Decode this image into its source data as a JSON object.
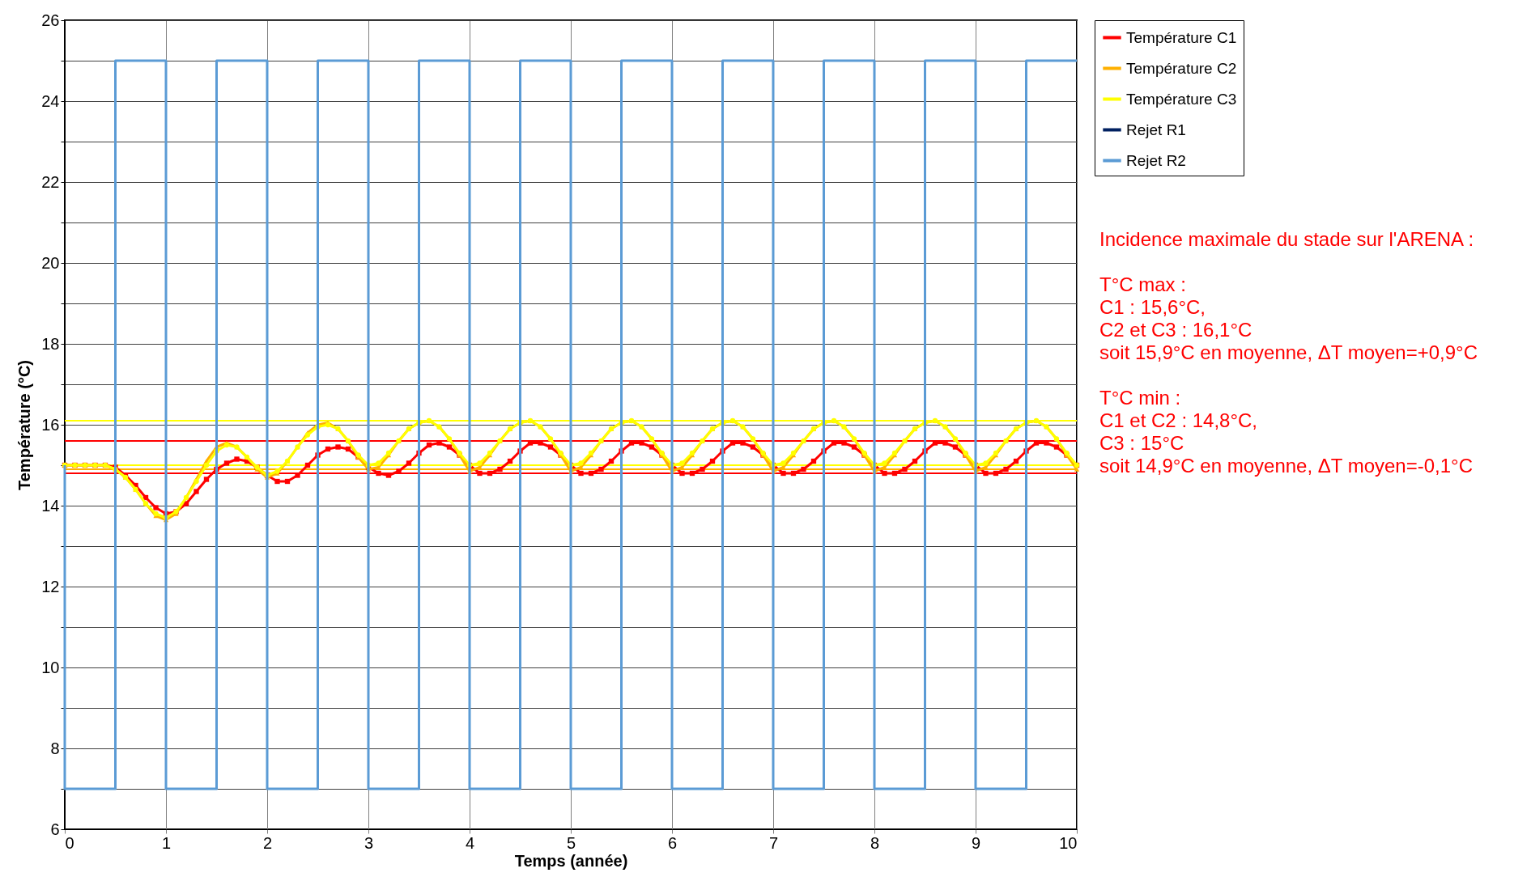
{
  "chart_data": {
    "type": "line",
    "xlabel": "Temps (année)",
    "ylabel": "Température (°C)",
    "xlim": [
      0,
      10
    ],
    "ylim": [
      6,
      26
    ],
    "xticks": [
      0,
      1,
      2,
      3,
      4,
      5,
      6,
      7,
      8,
      9,
      10
    ],
    "yticks": [
      6,
      {
        "value": 7,
        "label": null
      },
      8,
      {
        "value": 9,
        "label": null
      },
      10,
      {
        "value": 11,
        "label": null
      },
      12,
      {
        "value": 13,
        "label": null
      },
      14,
      {
        "value": 15,
        "label": null
      },
      16,
      {
        "value": 17,
        "label": null
      },
      18,
      {
        "value": 19,
        "label": null
      },
      20,
      {
        "value": 21,
        "label": null
      },
      22,
      {
        "value": 23,
        "label": null
      },
      24,
      {
        "value": 25,
        "label": null
      },
      26
    ],
    "grid": true,
    "legend": "right",
    "x": [
      0,
      0.1,
      0.2,
      0.3,
      0.4,
      0.5,
      0.6,
      0.7,
      0.8,
      0.9,
      1,
      1.1,
      1.2,
      1.3,
      1.4,
      1.5,
      1.6,
      1.7,
      1.8,
      1.9,
      2,
      2.1,
      2.2,
      2.3,
      2.4,
      2.5,
      2.6,
      2.7,
      2.8,
      2.9,
      3,
      3.1,
      3.2,
      3.3,
      3.4,
      3.5,
      3.6,
      3.7,
      3.8,
      3.9,
      4,
      4.1,
      4.2,
      4.3,
      4.4,
      4.5,
      4.6,
      4.7,
      4.8,
      4.9,
      5,
      5.1,
      5.2,
      5.3,
      5.4,
      5.5,
      5.6,
      5.7,
      5.8,
      5.9,
      6,
      6.1,
      6.2,
      6.3,
      6.4,
      6.5,
      6.6,
      6.7,
      6.8,
      6.9,
      7,
      7.1,
      7.2,
      7.3,
      7.4,
      7.5,
      7.6,
      7.7,
      7.8,
      7.9,
      8,
      8.1,
      8.2,
      8.3,
      8.4,
      8.5,
      8.6,
      8.7,
      8.8,
      8.9,
      9,
      9.1,
      9.2,
      9.3,
      9.4,
      9.5,
      9.6,
      9.7,
      9.8,
      9.9,
      10
    ],
    "series": [
      {
        "name": "Température C1",
        "color": "#ff0000",
        "marker": "square",
        "values": [
          15,
          15,
          15,
          15,
          15,
          14.95,
          14.75,
          14.5,
          14.2,
          13.95,
          13.8,
          13.85,
          14.05,
          14.35,
          14.65,
          14.9,
          15.05,
          15.15,
          15.1,
          14.95,
          14.75,
          14.6,
          14.6,
          14.75,
          15,
          15.25,
          15.4,
          15.45,
          15.4,
          15.2,
          14.95,
          14.8,
          14.75,
          14.85,
          15.05,
          15.3,
          15.5,
          15.55,
          15.45,
          15.25,
          15,
          14.8,
          14.8,
          14.9,
          15.1,
          15.35,
          15.55,
          15.55,
          15.45,
          15.25,
          15,
          14.8,
          14.8,
          14.9,
          15.1,
          15.35,
          15.55,
          15.55,
          15.45,
          15.25,
          15,
          14.8,
          14.8,
          14.9,
          15.1,
          15.35,
          15.55,
          15.55,
          15.45,
          15.25,
          15,
          14.8,
          14.8,
          14.9,
          15.1,
          15.35,
          15.55,
          15.55,
          15.45,
          15.25,
          15,
          14.8,
          14.8,
          14.9,
          15.1,
          15.35,
          15.55,
          15.55,
          15.45,
          15.25,
          15,
          14.8,
          14.8,
          14.9,
          15.1,
          15.35,
          15.55,
          15.55,
          15.45,
          15.25,
          15
        ]
      },
      {
        "name": "Température C2",
        "color": "#ffb000",
        "marker": "triangle",
        "values": [
          15,
          15,
          15,
          15,
          15,
          14.9,
          14.7,
          14.4,
          14.05,
          13.75,
          13.65,
          13.8,
          14.2,
          14.65,
          15.1,
          15.45,
          15.55,
          15.45,
          15.2,
          14.9,
          14.7,
          14.8,
          15.1,
          15.45,
          15.8,
          16,
          16.05,
          15.9,
          15.6,
          15.2,
          14.9,
          14.95,
          15.25,
          15.6,
          15.9,
          16.05,
          16.1,
          15.95,
          15.65,
          15.25,
          14.85,
          14.95,
          15.25,
          15.6,
          15.9,
          16.05,
          16.1,
          15.95,
          15.65,
          15.25,
          14.85,
          14.95,
          15.25,
          15.6,
          15.9,
          16.05,
          16.1,
          15.95,
          15.65,
          15.25,
          14.85,
          14.95,
          15.25,
          15.6,
          15.9,
          16.05,
          16.1,
          15.95,
          15.65,
          15.25,
          14.85,
          14.95,
          15.25,
          15.6,
          15.9,
          16.05,
          16.1,
          15.95,
          15.65,
          15.25,
          14.85,
          14.95,
          15.25,
          15.6,
          15.9,
          16.05,
          16.1,
          15.95,
          15.65,
          15.25,
          14.85,
          14.95,
          15.25,
          15.6,
          15.9,
          16.05,
          16.1,
          15.95,
          15.65,
          15.25,
          14.9
        ]
      },
      {
        "name": "Température C3",
        "color": "#ffff00",
        "marker": "circle",
        "values": [
          15,
          15,
          15,
          15,
          15,
          14.9,
          14.7,
          14.4,
          14.05,
          13.8,
          13.7,
          13.85,
          14.2,
          14.6,
          15,
          15.35,
          15.5,
          15.45,
          15.2,
          14.95,
          14.75,
          14.85,
          15.1,
          15.45,
          15.75,
          15.95,
          16,
          15.9,
          15.6,
          15.25,
          15,
          15.05,
          15.3,
          15.6,
          15.9,
          16.05,
          16.1,
          15.95,
          15.65,
          15.3,
          15,
          15.05,
          15.3,
          15.6,
          15.9,
          16.05,
          16.1,
          15.95,
          15.65,
          15.3,
          15,
          15.05,
          15.3,
          15.6,
          15.9,
          16.05,
          16.1,
          15.95,
          15.65,
          15.3,
          15,
          15.05,
          15.3,
          15.6,
          15.9,
          16.05,
          16.1,
          15.95,
          15.65,
          15.3,
          15,
          15.05,
          15.3,
          15.6,
          15.9,
          16.05,
          16.1,
          15.95,
          15.65,
          15.3,
          15,
          15.05,
          15.3,
          15.6,
          15.9,
          16.05,
          16.1,
          15.95,
          15.65,
          15.3,
          15,
          15.05,
          15.3,
          15.6,
          15.9,
          16.05,
          16.1,
          15.95,
          15.65,
          15.3,
          15
        ]
      },
      {
        "name": "Rejet R1",
        "color": "#002060",
        "marker": "square",
        "values": [
          null,
          null,
          null,
          null,
          null,
          null,
          null,
          null,
          null,
          null,
          null,
          null,
          null,
          null,
          null,
          null,
          null,
          null,
          null,
          null,
          null,
          null,
          null,
          null,
          null,
          null,
          null,
          null,
          null,
          null,
          null,
          null,
          null,
          null,
          null,
          null,
          null,
          null,
          null,
          null,
          null,
          null,
          null,
          null,
          null,
          null,
          null,
          null,
          null,
          null,
          null,
          null,
          null,
          null,
          null,
          null,
          null,
          null,
          null,
          null,
          null,
          null,
          null,
          null,
          null,
          null,
          null,
          null,
          null,
          null,
          null,
          null,
          null,
          null,
          null,
          null,
          null,
          null,
          null,
          null,
          null,
          null,
          null,
          null,
          null,
          null,
          null,
          null,
          null,
          null,
          null,
          null,
          null,
          null,
          null,
          null,
          null,
          null,
          null,
          null,
          null
        ]
      },
      {
        "name": "Rejet R2",
        "color": "#5b9bd5",
        "marker": "none",
        "x": [
          0,
          0,
          0.5,
          0.5,
          1,
          1,
          1.5,
          1.5,
          2,
          2,
          2.5,
          2.5,
          3,
          3,
          3.5,
          3.5,
          4,
          4,
          4.5,
          4.5,
          5,
          5,
          5.5,
          5.5,
          6,
          6,
          6.5,
          6.5,
          7,
          7,
          7.5,
          7.5,
          8,
          8,
          8.5,
          8.5,
          9,
          9,
          9.5,
          9.5,
          10
        ],
        "values": [
          15,
          7,
          7,
          25,
          25,
          7,
          7,
          25,
          25,
          7,
          7,
          25,
          25,
          7,
          7,
          25,
          25,
          7,
          7,
          25,
          25,
          7,
          7,
          25,
          25,
          7,
          7,
          25,
          25,
          7,
          7,
          25,
          25,
          7,
          7,
          25,
          25,
          7,
          7,
          25,
          25
        ]
      }
    ],
    "ref_lines": [
      {
        "axis": "y",
        "value": 16.1,
        "color": "#ffff00"
      },
      {
        "axis": "y",
        "value": 15.6,
        "color": "#ff0000"
      },
      {
        "axis": "y",
        "value": 15,
        "color": "#ffff00"
      },
      {
        "axis": "y",
        "value": 14.9,
        "color": "#ffb000"
      },
      {
        "axis": "y",
        "value": 14.8,
        "color": "#ff0000"
      }
    ],
    "annotations": [
      "Incidence maximale du stade sur l'ARENA :",
      "T°C max :\nC1 : 15,6°C,\nC2 et C3 : 16,1°C\nsoit 15,9°C en moyenne, ΔT moyen=+0,9°C",
      "T°C min :\nC1 et C2 : 14,8°C,\nC3 : 15°C\nsoit 14,9°C en moyenne, ΔT moyen=-0,1°C"
    ]
  }
}
